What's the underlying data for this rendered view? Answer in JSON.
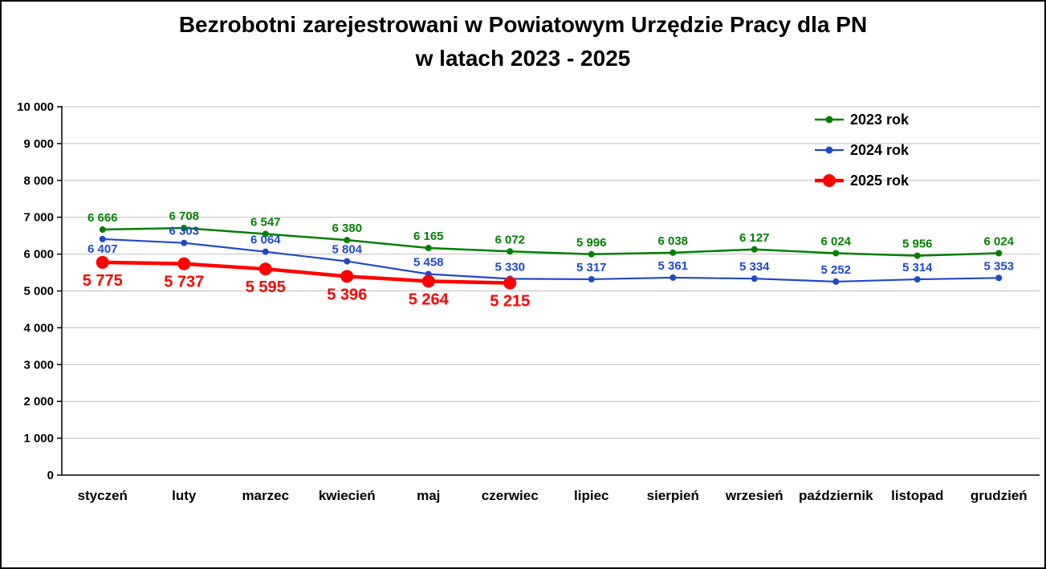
{
  "page": {
    "background_color": "#FFFFFF",
    "border_color": "#000000"
  },
  "chart_data": {
    "type": "line",
    "title": "Bezrobotni zarejestrowani w Powiatowym Urzędzie Pracy dla PN w latach 2023 - 2025",
    "title_line1": "Bezrobotni zarejestrowani w Powiatowym Urzędzie Pracy dla PN",
    "title_line2": "w latach 2023 - 2025",
    "xlabel": "",
    "ylabel": "",
    "ylim": [
      0,
      10000
    ],
    "ytick_step": 1000,
    "grid": true,
    "legend_position": "top-right",
    "categories": [
      "styczeń",
      "luty",
      "marzec",
      "kwiecień",
      "maj",
      "czerwiec",
      "lipiec",
      "sierpień",
      "wrzesień",
      "październik",
      "listopad",
      "grudzień"
    ],
    "series": [
      {
        "name": "2023 rok",
        "color": "#008000",
        "line_width": 2.5,
        "marker_radius": 4,
        "label_position": "above",
        "label_font_size": 15,
        "values": [
          6666,
          6708,
          6547,
          6380,
          6165,
          6072,
          5996,
          6038,
          6127,
          6024,
          5956,
          6024
        ]
      },
      {
        "name": "2024 rok",
        "color": "#1F49C7",
        "line_width": 2.2,
        "marker_radius": 4,
        "label_position": "above",
        "label_position_overrides": {
          "0": "below"
        },
        "label_font_size": 15,
        "values": [
          6407,
          6303,
          6064,
          5804,
          5458,
          5330,
          5317,
          5361,
          5334,
          5252,
          5314,
          5353
        ]
      },
      {
        "name": "2025 rok",
        "color": "#FF0000",
        "line_width": 4.5,
        "marker_radius": 8,
        "label_position": "below",
        "label_font_size": 20,
        "values": [
          5775,
          5737,
          5595,
          5396,
          5264,
          5215
        ]
      }
    ]
  }
}
